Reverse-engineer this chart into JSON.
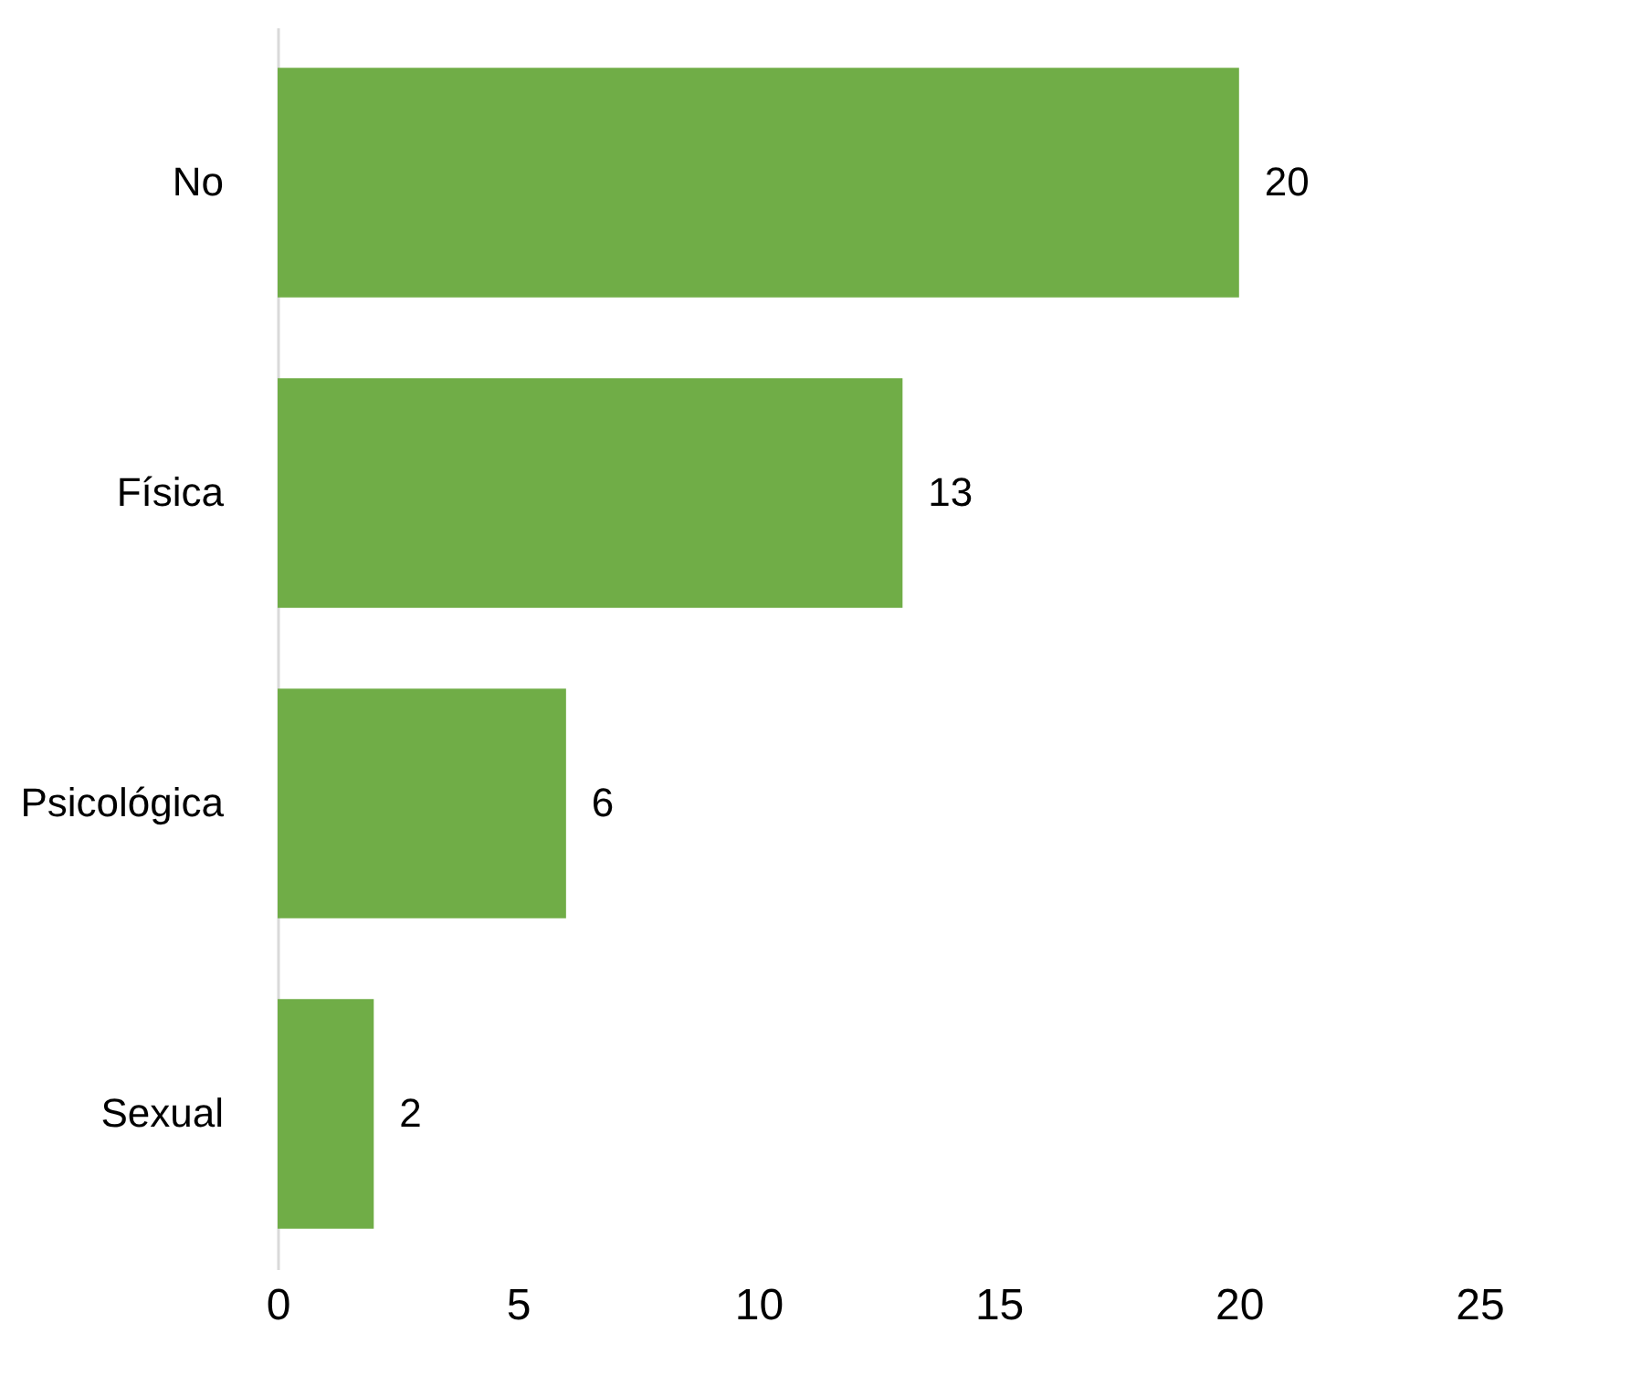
{
  "chart_data": {
    "type": "bar",
    "orientation": "horizontal",
    "categories": [
      "No",
      "Física",
      "Psicológica",
      "Sexual"
    ],
    "values": [
      20,
      13,
      6,
      2
    ],
    "color": "#70ad47",
    "xlim": [
      0,
      25
    ],
    "xticks": [
      0,
      5,
      10,
      15,
      20,
      25
    ],
    "data_labels": true,
    "grid": false
  }
}
